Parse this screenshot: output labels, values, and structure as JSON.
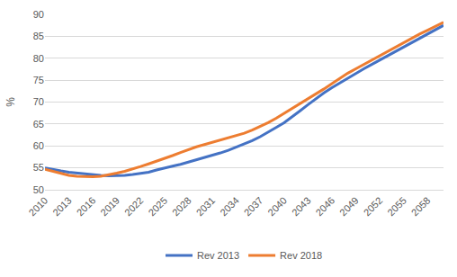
{
  "chart_data": {
    "type": "line",
    "y_label": "%",
    "x": [
      2010,
      2011,
      2012,
      2013,
      2014,
      2015,
      2016,
      2017,
      2018,
      2019,
      2020,
      2021,
      2022,
      2023,
      2024,
      2025,
      2026,
      2027,
      2028,
      2029,
      2030,
      2031,
      2032,
      2033,
      2034,
      2035,
      2036,
      2037,
      2038,
      2039,
      2040,
      2041,
      2042,
      2043,
      2044,
      2045,
      2046,
      2047,
      2048,
      2049,
      2050,
      2051,
      2052,
      2053,
      2054,
      2055,
      2056,
      2057,
      2058,
      2059,
      2060
    ],
    "series": [
      {
        "name": "Rev 2013",
        "color": "#4472c4",
        "values": [
          55,
          54.6,
          54.3,
          54,
          53.8,
          53.6,
          53.4,
          53.3,
          53.2,
          53.2,
          53.3,
          53.5,
          53.7,
          54,
          54.5,
          55,
          55.4,
          55.8,
          56.3,
          56.8,
          57.3,
          57.8,
          58.4,
          59,
          59.7,
          60.4,
          61.2,
          62.1,
          63.1,
          64.2,
          65.3,
          66.6,
          68,
          69.4,
          70.8,
          72.1,
          73.3,
          74.4,
          75.5,
          76.6,
          77.6,
          78.6,
          79.6,
          80.6,
          81.6,
          82.6,
          83.6,
          84.6,
          85.6,
          86.6,
          87.5
        ]
      },
      {
        "name": "Rev 2018",
        "color": "#ed7d31",
        "values": [
          54.7,
          54.2,
          53.7,
          53.3,
          53.1,
          53,
          53,
          53.1,
          53.4,
          53.8,
          54.2,
          54.7,
          55.3,
          55.9,
          56.5,
          57.1,
          57.8,
          58.5,
          59.2,
          59.8,
          60.3,
          60.8,
          61.3,
          61.8,
          62.3,
          62.9,
          63.6,
          64.4,
          65.3,
          66.3,
          67.4,
          68.5,
          69.6,
          70.7,
          71.8,
          73,
          74.2,
          75.4,
          76.6,
          77.6,
          78.6,
          79.6,
          80.6,
          81.6,
          82.6,
          83.6,
          84.6,
          85.5,
          86.4,
          87.3,
          88.2
        ]
      }
    ],
    "xlim": [
      2010,
      2060
    ],
    "xticks": [
      2010,
      2013,
      2016,
      2019,
      2022,
      2025,
      2028,
      2031,
      2034,
      2037,
      2040,
      2043,
      2046,
      2049,
      2052,
      2055,
      2058
    ],
    "ylim": [
      50,
      90
    ],
    "yticks": [
      50,
      55,
      60,
      65,
      70,
      75,
      80,
      85,
      90
    ],
    "grid": true,
    "legend": "bottom"
  }
}
